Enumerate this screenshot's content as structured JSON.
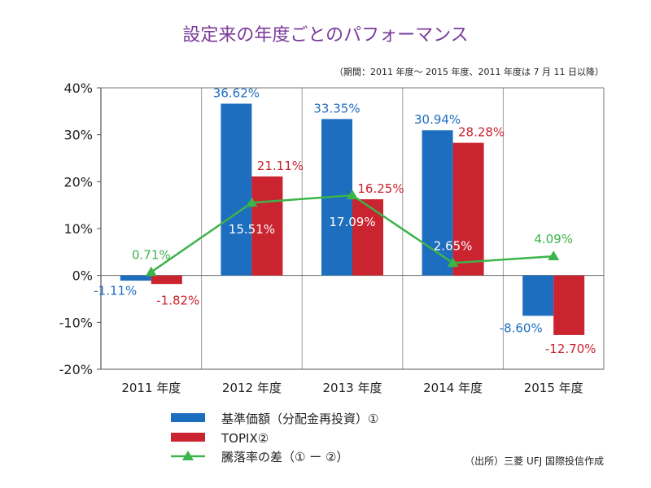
{
  "chart_data": {
    "type": "bar",
    "title": "設定来の年度ごとのパフォーマンス",
    "subtitle": "（期間：2011 年度～ 2015 年度、2011 年度は 7 月 11 日以降）",
    "source": "（出所）三菱 UFJ 国際投信作成",
    "categories": [
      "2011 年度",
      "2012 年度",
      "2013 年度",
      "2014 年度",
      "2015 年度"
    ],
    "ylim": [
      -20,
      40
    ],
    "yticks": [
      40,
      30,
      20,
      10,
      0,
      -10,
      -20
    ],
    "ytick_labels": [
      "40%",
      "30%",
      "20%",
      "10%",
      "0%",
      "-10%",
      "-20%"
    ],
    "grid": "vertical separators",
    "legend_position": "bottom-left",
    "series": [
      {
        "name": "基準価額（分配金再投資）①",
        "kind": "bar",
        "color": "#1e6ec0",
        "values": [
          -1.11,
          36.62,
          33.35,
          30.94,
          -8.6
        ],
        "labels": [
          "-1.11%",
          "36.62%",
          "33.35%",
          "30.94%",
          "-8.60%"
        ]
      },
      {
        "name": "TOPIX②",
        "kind": "bar",
        "color": "#c9242f",
        "values": [
          -1.82,
          21.11,
          16.25,
          28.28,
          -12.7
        ],
        "labels": [
          "-1.82%",
          "21.11%",
          "16.25%",
          "28.28%",
          "-12.70%"
        ]
      },
      {
        "name": "騰落率の差（① ー ②）",
        "kind": "line",
        "color": "#3cb44a",
        "values": [
          0.71,
          15.51,
          17.09,
          2.65,
          4.09
        ],
        "labels": [
          "0.71%",
          "15.51%",
          "17.09%",
          "2.65%",
          "4.09%"
        ]
      }
    ]
  }
}
